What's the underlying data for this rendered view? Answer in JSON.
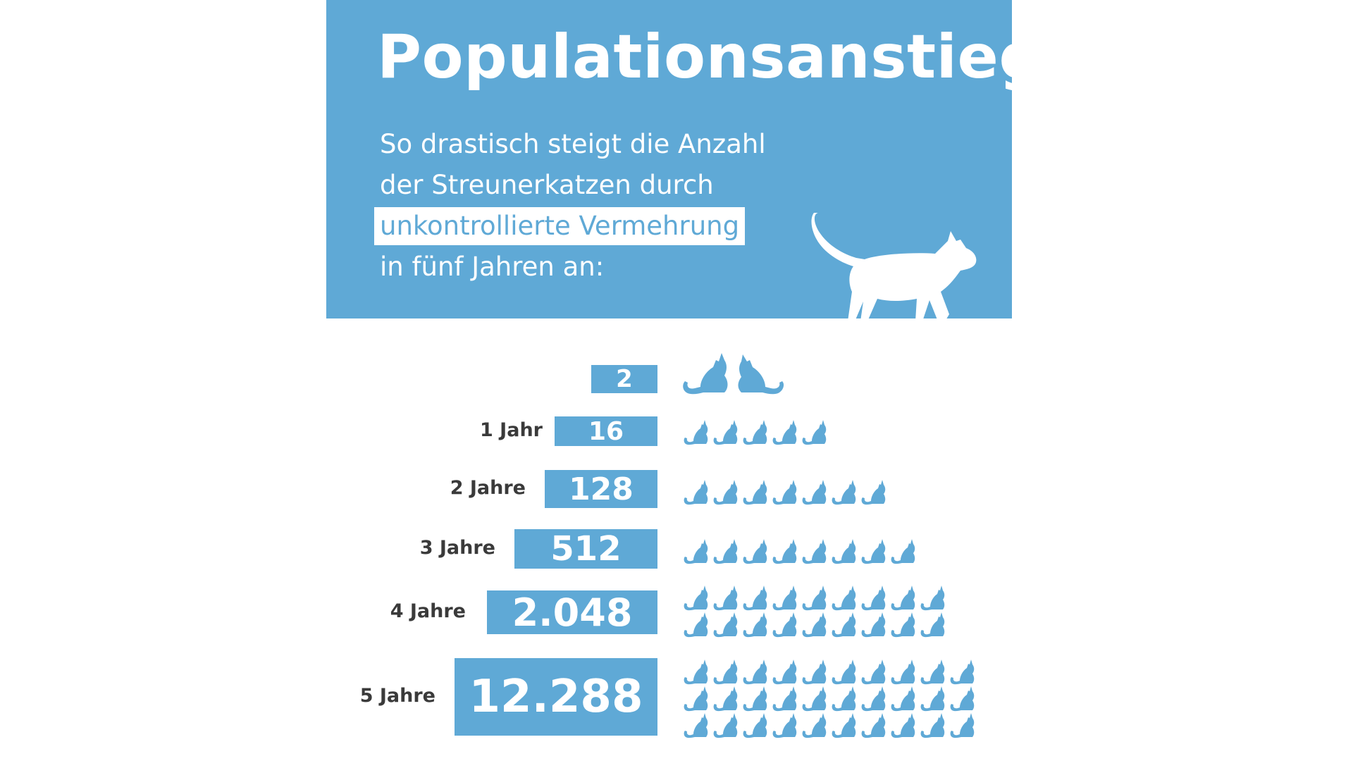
{
  "header": {
    "title": "Populationsanstieg",
    "subtitle_lines": [
      "So drastisch steigt die Anzahl",
      "der Streunerkatzen durch",
      "unkontrollierte Vermehrung",
      "in fünf Jahren an:"
    ]
  },
  "colors": {
    "accent": "#5fa9d6",
    "label_text": "#3a3a3a",
    "background": "#ffffff"
  },
  "icons": {
    "header": "walking-cat-icon",
    "start": "sitting-cat-pair-icon",
    "rows": "sitting-cat-icon"
  },
  "chart_data": {
    "type": "bar",
    "title": "Populationsanstieg",
    "categories": [
      "",
      "1 Jahr",
      "2 Jahre",
      "3 Jahre",
      "4 Jahre",
      "5 Jahre"
    ],
    "values": [
      2,
      16,
      128,
      512,
      2048,
      12288
    ],
    "value_labels": [
      "2",
      "16",
      "128",
      "512",
      "2.048",
      "12.288"
    ],
    "icon_counts": [
      2,
      5,
      7,
      8,
      18,
      30
    ]
  }
}
